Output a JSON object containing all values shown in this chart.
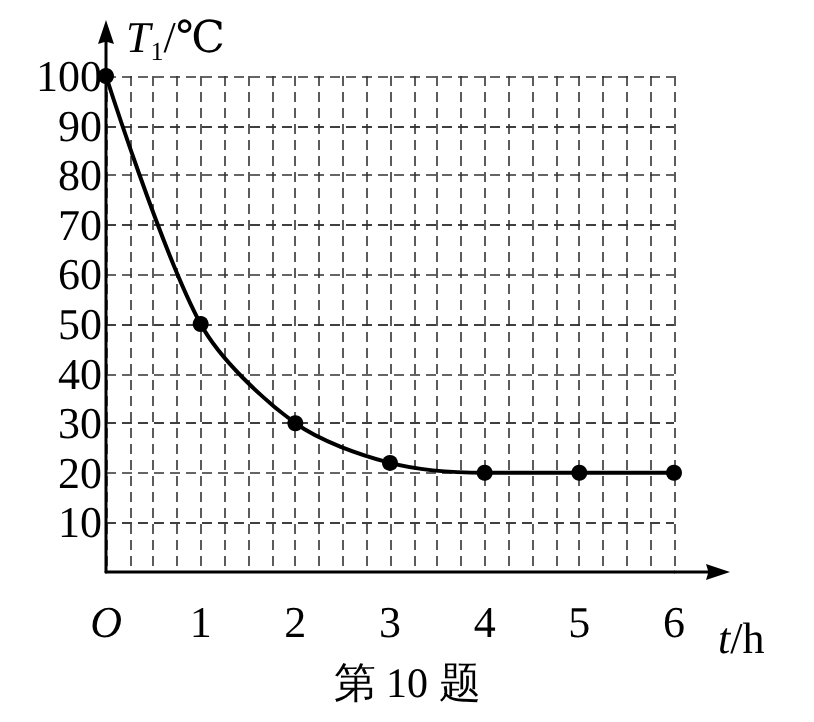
{
  "chart_data": {
    "type": "line",
    "title": "第 10 题",
    "xlabel": "t/h",
    "ylabel": "T$_{1}$/℃",
    "x": [
      0,
      1,
      2,
      3,
      4,
      5,
      6
    ],
    "series": [
      {
        "color": "#000000",
        "values": [
          100,
          50,
          30,
          22,
          20,
          20,
          20
        ]
      }
    ],
    "xlim": [
      0,
      6
    ],
    "xticks": [
      {
        "value": 0,
        "label": "O"
      },
      1,
      2,
      3,
      4,
      5,
      6
    ],
    "ylim": [
      0,
      100
    ],
    "yticks": [
      10,
      20,
      30,
      40,
      50,
      60,
      70,
      80,
      90,
      100
    ],
    "grid": true,
    "marker": "circle",
    "line_style": "solid"
  }
}
